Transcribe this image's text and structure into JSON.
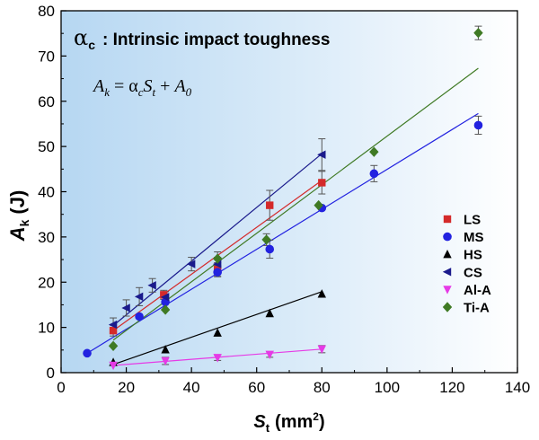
{
  "chart_data": {
    "type": "scatter",
    "title": "",
    "xlabel": "S",
    "xlabel_sub": "t",
    "xlabel_unit": "(mm",
    "xlabel_unit_sup": "2",
    "xlabel_unit_close": ")",
    "ylabel": "A",
    "ylabel_sub": "k",
    "ylabel_unit": "(J)",
    "xlim": [
      0,
      140
    ],
    "ylim": [
      0,
      80
    ],
    "xticks": [
      0,
      20,
      40,
      60,
      80,
      100,
      120,
      140
    ],
    "yticks": [
      0,
      10,
      20,
      30,
      40,
      50,
      60,
      70,
      80
    ],
    "annotation": {
      "symbol": "α",
      "symbol_sub": "c",
      "text": ": Intrinsic impact toughness"
    },
    "equation": {
      "lhs": "A",
      "lhs_sub": "k",
      "eq": " = ",
      "alpha": "α",
      "alpha_sub": "c",
      "s": "S",
      "s_sub": "t",
      "plus": " + ",
      "a0": "A",
      "a0_sub": "0"
    },
    "series": [
      {
        "name": "LS",
        "color": "#d42a2a",
        "marker": "square",
        "x": [
          16,
          31.5,
          48,
          64,
          80
        ],
        "y": [
          9.3,
          17.2,
          22.8,
          37,
          42
        ],
        "err": [
          1.2,
          1,
          1.5,
          3.3,
          2.5
        ],
        "fit": [
          [
            16,
            9.3
          ],
          [
            80,
            42.5
          ]
        ]
      },
      {
        "name": "MS",
        "color": "#2222e0",
        "marker": "circle",
        "x": [
          8,
          24,
          32,
          48,
          64,
          80,
          96,
          128
        ],
        "y": [
          4.3,
          12.4,
          15.6,
          22.2,
          27.3,
          36.4,
          44,
          54.7
        ],
        "err": [
          0,
          0,
          0,
          1,
          2,
          0,
          1.8,
          2
        ],
        "fit": [
          [
            8,
            4.3
          ],
          [
            128,
            57.3
          ]
        ]
      },
      {
        "name": "HS",
        "color": "#000000",
        "marker": "triangle-up",
        "x": [
          16,
          32,
          48,
          64,
          80
        ],
        "y": [
          2.3,
          5.1,
          8.8,
          13.1,
          17.4
        ],
        "err": [
          0,
          0,
          0,
          0,
          0
        ],
        "fit": [
          [
            16,
            1.8
          ],
          [
            80,
            17.9
          ]
        ]
      },
      {
        "name": "CS",
        "color": "#1a1a8c",
        "marker": "triangle-left",
        "x": [
          16,
          20,
          24,
          28,
          32,
          40,
          48,
          80
        ],
        "y": [
          10.6,
          14.3,
          16.8,
          19.3,
          16.7,
          24,
          24,
          48.2
        ],
        "err": [
          1.5,
          1.8,
          2,
          1.5,
          1.2,
          1.5,
          1.5,
          3.5
        ],
        "fit": [
          [
            16,
            10.4
          ],
          [
            80,
            48.4
          ]
        ]
      },
      {
        "name": "Al-A",
        "color": "#e63ae6",
        "marker": "triangle-down",
        "x": [
          16,
          32,
          48,
          64,
          80
        ],
        "y": [
          1.6,
          2.6,
          3.3,
          4,
          5.2
        ],
        "err": [
          0,
          0.8,
          0.6,
          0.6,
          0.8
        ],
        "fit": [
          [
            16,
            1.6
          ],
          [
            80,
            5.2
          ]
        ]
      },
      {
        "name": "Ti-A",
        "color": "#3f7a24",
        "marker": "diamond",
        "x": [
          16,
          32,
          48,
          63,
          79,
          96,
          128
        ],
        "y": [
          5.9,
          13.9,
          25.2,
          29.4,
          37,
          48.8,
          75.1
        ],
        "err": [
          0,
          0,
          1.5,
          1.3,
          0,
          0,
          1.5
        ],
        "fit": [
          [
            16,
            7.2
          ],
          [
            128,
            67.3
          ]
        ]
      }
    ]
  }
}
